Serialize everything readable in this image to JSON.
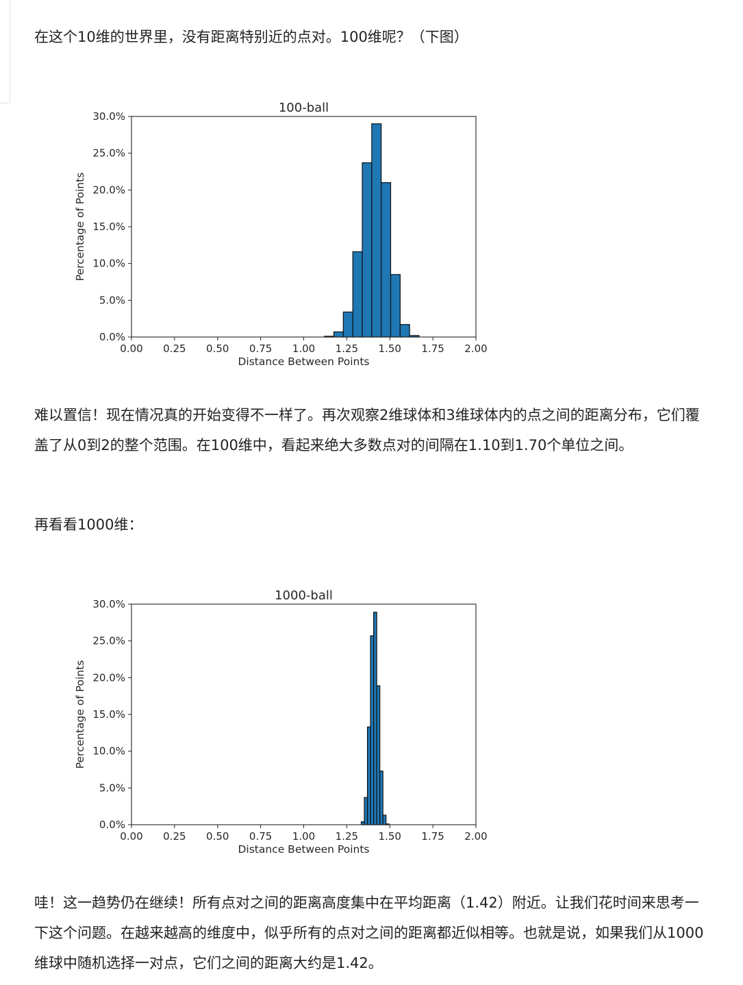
{
  "paragraphs": {
    "p1": "在这个10维的世界里，没有距离特别近的点对。100维呢？（下图）",
    "p2": "难以置信！现在情况真的开始变得不一样了。再次观察2维球体和3维球体内的点之间的距离分布，它们覆盖了从0到2的整个范围。在100维中，看起来绝大多数点对的间隔在1.10到1.70个单位之间。",
    "p3": "再看看1000维：",
    "p4": "哇！这一趋势仍在继续！所有点对之间的距离高度集中在平均距离（1.42）附近。让我们花时间来思考一下这个问题。在越来越高的维度中，似乎所有的点对之间的距离都近似相等。也就是说，如果我们从1000维球中随机选择一对点，它们之间的距离大约是1.42。"
  },
  "chart_data": [
    {
      "type": "bar",
      "title": "100-ball",
      "xlabel": "Distance Between Points",
      "ylabel": "Percentage of Points",
      "xlim": [
        0,
        2
      ],
      "ylim": [
        0,
        30
      ],
      "x_ticks": [
        "0.00",
        "0.25",
        "0.50",
        "0.75",
        "1.00",
        "1.25",
        "1.50",
        "1.75",
        "2.00"
      ],
      "y_ticks": [
        "0.0%",
        "5.0%",
        "10.0%",
        "15.0%",
        "20.0%",
        "25.0%",
        "30.0%"
      ],
      "bin_width": 0.055,
      "bin_starts": [
        1.12,
        1.175,
        1.23,
        1.285,
        1.34,
        1.395,
        1.45,
        1.505,
        1.56,
        1.615
      ],
      "values": [
        0.1,
        0.7,
        3.4,
        11.6,
        23.7,
        29.0,
        21.0,
        8.5,
        1.7,
        0.2
      ],
      "color": "#1f77b4",
      "edge_color": "#111111",
      "grid": false
    },
    {
      "type": "bar",
      "title": "1000-ball",
      "xlabel": "Distance Between Points",
      "ylabel": "Percentage of Points",
      "xlim": [
        0,
        2
      ],
      "ylim": [
        0,
        30
      ],
      "x_ticks": [
        "0.00",
        "0.25",
        "0.50",
        "0.75",
        "1.00",
        "1.25",
        "1.50",
        "1.75",
        "2.00"
      ],
      "y_ticks": [
        "0.0%",
        "5.0%",
        "10.0%",
        "15.0%",
        "20.0%",
        "25.0%",
        "30.0%"
      ],
      "bin_width": 0.018,
      "bin_starts": [
        1.334,
        1.352,
        1.37,
        1.388,
        1.406,
        1.424,
        1.442,
        1.46,
        1.478
      ],
      "values": [
        0.4,
        3.7,
        13.3,
        25.7,
        28.9,
        18.9,
        7.3,
        1.3,
        0.1
      ],
      "color": "#1f77b4",
      "edge_color": "#111111",
      "grid": false
    }
  ]
}
